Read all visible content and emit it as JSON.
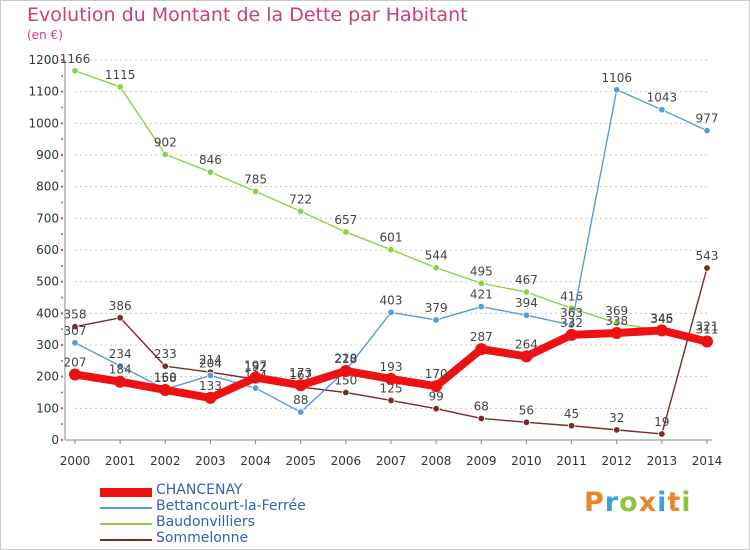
{
  "title": "Evolution du Montant de la Dette par Habitant",
  "unit_label": "(en €)",
  "logo": {
    "text": "Proxiti",
    "colors": [
      "#e8862a",
      "#3fa0d8",
      "#8cc63f",
      "#e8862a",
      "#3fa0d8",
      "#e8862a",
      "#8cc63f"
    ]
  },
  "chart_data": {
    "type": "line",
    "x": [
      2000,
      2001,
      2002,
      2003,
      2004,
      2005,
      2006,
      2007,
      2008,
      2009,
      2010,
      2011,
      2012,
      2013,
      2014
    ],
    "xlim": [
      2000,
      2014
    ],
    "ylim": [
      0,
      1200
    ],
    "yticks": [
      0,
      100,
      200,
      300,
      400,
      500,
      600,
      700,
      800,
      900,
      1000,
      1100,
      1200
    ],
    "grid": "dotted horizontal",
    "legend_position": "bottom-left",
    "series": [
      {
        "name": "Sommelonne",
        "color": "#7b2a2a",
        "values": [
          358,
          386,
          233,
          214,
          192,
          167,
          150,
          125,
          99,
          68,
          56,
          45,
          32,
          19,
          543
        ]
      },
      {
        "name": "Baudonvilliers",
        "color": "#8cd048",
        "values": [
          1166,
          1115,
          902,
          846,
          785,
          722,
          657,
          601,
          544,
          495,
          467,
          416,
          369,
          345,
          321
        ]
      },
      {
        "name": "Bettancourt-la-Ferrée",
        "color": "#5b9bd5",
        "values": [
          307,
          234,
          160,
          204,
          164,
          88,
          220,
          403,
          379,
          421,
          394,
          363,
          1106,
          1043,
          977
        ]
      },
      {
        "name": "CHANCENAY",
        "color": "#ee1111",
        "values": [
          207,
          184,
          158,
          133,
          197,
          173,
          218,
          193,
          170,
          287,
          264,
          332,
          338,
          346,
          311
        ]
      }
    ]
  }
}
